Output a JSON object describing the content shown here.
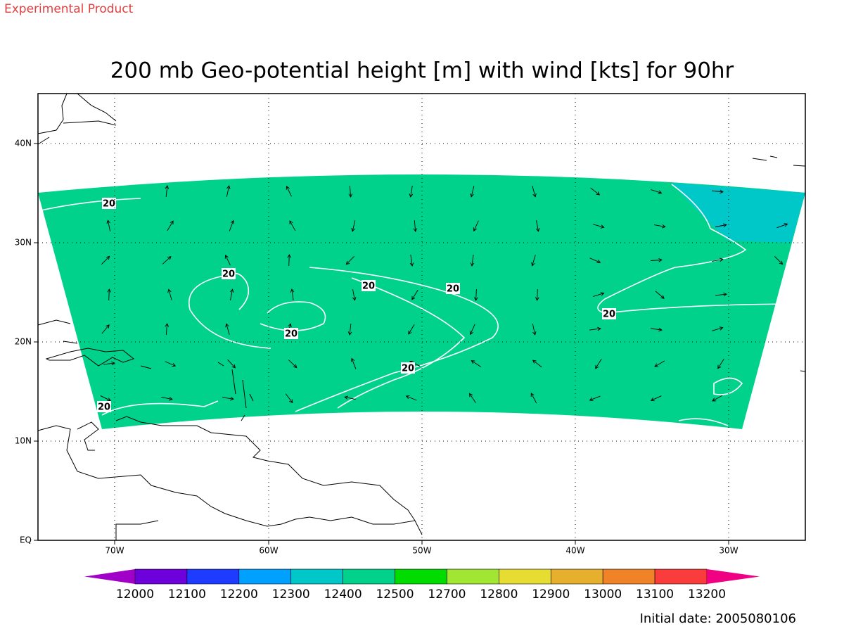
{
  "header": {
    "note": "Experimental Product",
    "title": "200 mb Geo-potential height [m] with wind [kts] for 90hr"
  },
  "map": {
    "lat_labels": [
      "EQ",
      "10N",
      "20N",
      "30N",
      "40N"
    ],
    "lon_labels": [
      "70W",
      "60W",
      "50W",
      "40W",
      "30W"
    ],
    "fill_color": "#00d28c",
    "high_fill_color": "#00c8c8",
    "contour_labels": [
      "20",
      "20",
      "20",
      "20",
      "20",
      "20",
      "20",
      "20"
    ]
  },
  "colorbar": {
    "labels": [
      "12000",
      "12100",
      "12200",
      "12300",
      "12400",
      "12500",
      "12700",
      "12800",
      "12900",
      "13000",
      "13100",
      "13200"
    ],
    "colors": [
      "#a000c8",
      "#6e00dc",
      "#1e3cff",
      "#00a0ff",
      "#00c8c8",
      "#00d28c",
      "#00dc00",
      "#a0e632",
      "#e6dc32",
      "#e6af2d",
      "#f08228",
      "#fa3c3c",
      "#f00082"
    ]
  },
  "footer": {
    "initial_date": "Initial date: 2005080106"
  }
}
